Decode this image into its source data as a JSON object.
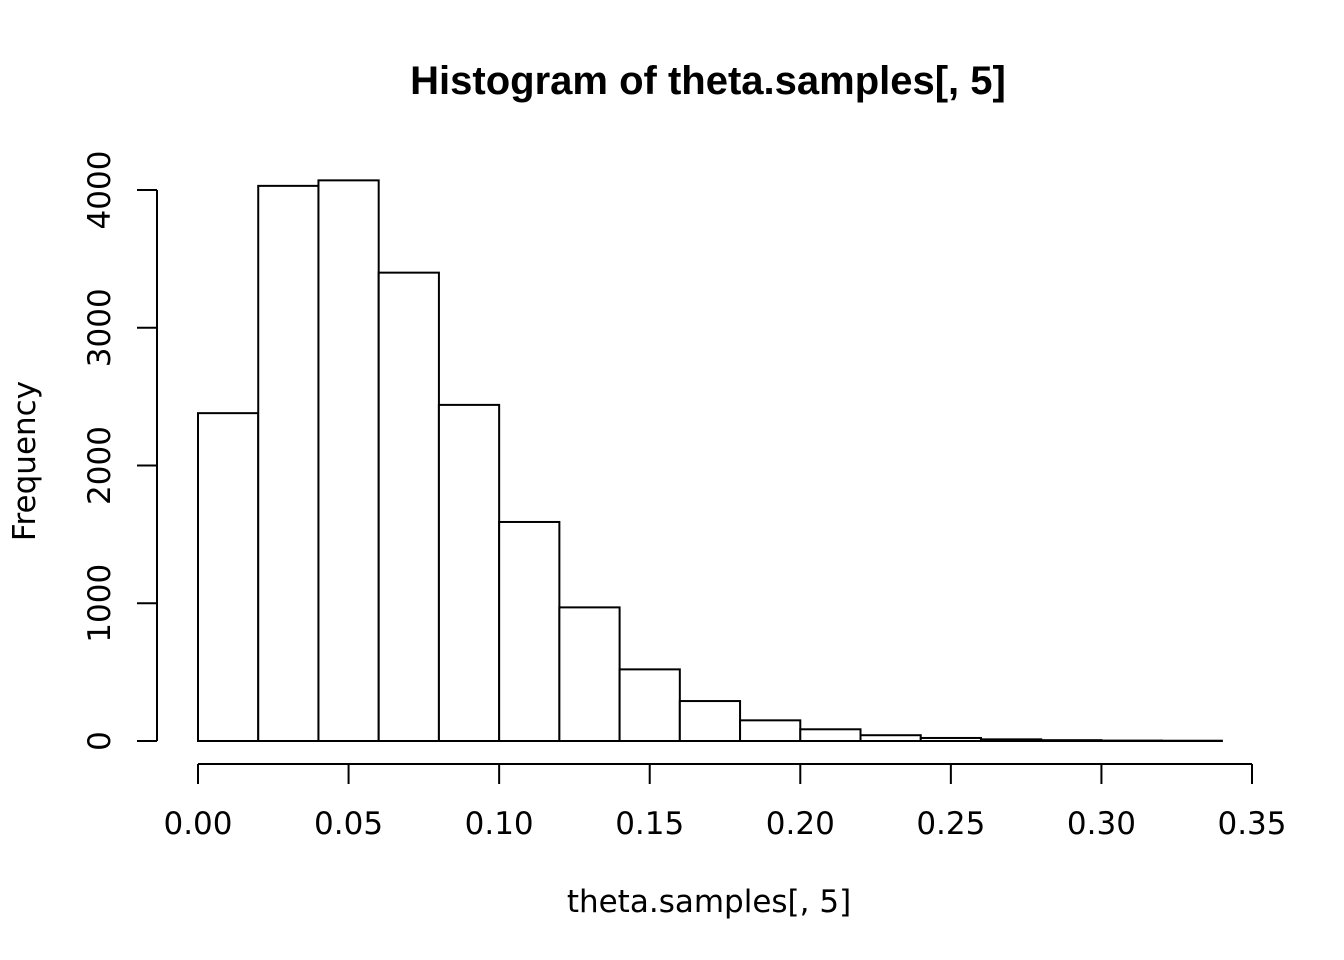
{
  "chart_data": {
    "type": "bar",
    "title": "Histogram of theta.samples[, 5]",
    "xlabel": "theta.samples[, 5]",
    "ylabel": "Frequency",
    "bin_edges": [
      0.0,
      0.02,
      0.04,
      0.06,
      0.08,
      0.1,
      0.12,
      0.14,
      0.16,
      0.18,
      0.2,
      0.22,
      0.24,
      0.26,
      0.28,
      0.3,
      0.32,
      0.34
    ],
    "values": [
      2380,
      4030,
      4070,
      3400,
      2440,
      1590,
      970,
      520,
      290,
      150,
      85,
      42,
      22,
      12,
      6,
      3,
      2
    ],
    "xlim": [
      0.0,
      0.35
    ],
    "ylim": [
      0,
      4000
    ],
    "x_ticks": [
      0.0,
      0.05,
      0.1,
      0.15,
      0.2,
      0.25,
      0.3,
      0.35
    ],
    "x_tick_labels": [
      "0.00",
      "0.05",
      "0.10",
      "0.15",
      "0.20",
      "0.25",
      "0.30",
      "0.35"
    ],
    "y_ticks": [
      0,
      1000,
      2000,
      3000,
      4000
    ],
    "y_tick_labels": [
      "0",
      "1000",
      "2000",
      "3000",
      "4000"
    ],
    "grid": false
  }
}
